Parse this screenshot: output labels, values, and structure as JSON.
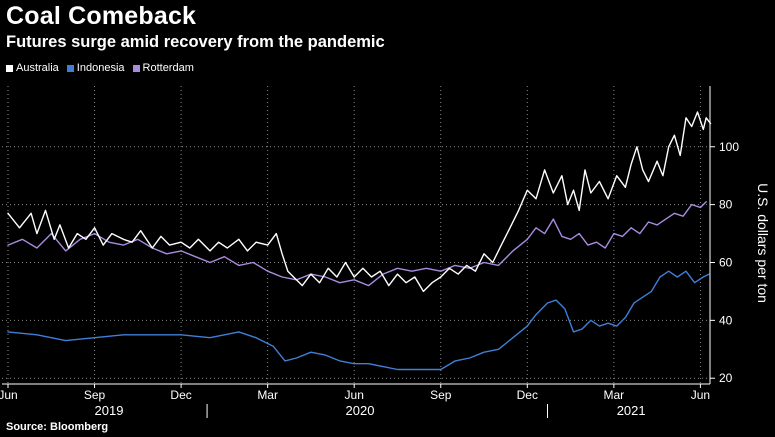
{
  "chart_data": {
    "type": "line",
    "title": "Coal Comeback",
    "subtitle": "Futures surge amid recovery from the pandemic",
    "ylabel": "U.S. dollars per ton",
    "xlabel": "",
    "source": "Source: Bloomberg",
    "ylim": [
      18,
      121
    ],
    "yticks": [
      20,
      40,
      60,
      80,
      100
    ],
    "grid": true,
    "legend_position": "top-left",
    "x_range_months": [
      0,
      24.5
    ],
    "x_ticks": [
      {
        "label": "Jun",
        "month": 0
      },
      {
        "label": "Sep",
        "month": 3
      },
      {
        "label": "Dec",
        "month": 6
      },
      {
        "label": "Mar",
        "month": 9
      },
      {
        "label": "Jun",
        "month": 12
      },
      {
        "label": "Sep",
        "month": 15
      },
      {
        "label": "Dec",
        "month": 18
      },
      {
        "label": "Mar",
        "month": 21
      },
      {
        "label": "Jun",
        "month": 24
      }
    ],
    "years": [
      {
        "label": "2019",
        "month": 3.5
      },
      {
        "label": "2020",
        "month": 12.2
      },
      {
        "label": "2021",
        "month": 21.6
      }
    ],
    "year_separators": [
      6.9,
      18.7
    ],
    "x_unit": "months since Jun 2019",
    "series": [
      {
        "name": "Australia",
        "color": "#ffffff",
        "x": [
          0,
          0.4,
          0.8,
          1.0,
          1.3,
          1.6,
          1.8,
          2.1,
          2.4,
          2.7,
          3.0,
          3.3,
          3.6,
          4.0,
          4.3,
          4.6,
          5.0,
          5.3,
          5.6,
          6.0,
          6.3,
          6.6,
          7.0,
          7.3,
          7.6,
          8.0,
          8.3,
          8.6,
          9.0,
          9.3,
          9.5,
          9.7,
          9.9,
          10.2,
          10.5,
          10.8,
          11.1,
          11.4,
          11.7,
          12.0,
          12.3,
          12.6,
          12.9,
          13.2,
          13.5,
          13.8,
          14.1,
          14.4,
          14.7,
          15.0,
          15.3,
          15.6,
          15.9,
          16.2,
          16.5,
          16.8,
          17.1,
          17.4,
          17.7,
          18.0,
          18.3,
          18.6,
          18.9,
          19.2,
          19.4,
          19.6,
          19.8,
          20.0,
          20.2,
          20.5,
          20.8,
          21.1,
          21.4,
          21.6,
          21.8,
          22.0,
          22.2,
          22.5,
          22.7,
          22.9,
          23.1,
          23.3,
          23.5,
          23.7,
          23.9,
          24.1,
          24.2,
          24.35
        ],
        "values": [
          77,
          72,
          77,
          70,
          78,
          68,
          73,
          65,
          70,
          68,
          72,
          66,
          70,
          68,
          67,
          71,
          65,
          69,
          66,
          67,
          65,
          68,
          64,
          67,
          65,
          68,
          64,
          67,
          66,
          70,
          63,
          57,
          55,
          52,
          56,
          53,
          58,
          55,
          60,
          55,
          58,
          55,
          57,
          52,
          56,
          53,
          55,
          50,
          53,
          55,
          58,
          56,
          59,
          57,
          63,
          60,
          66,
          72,
          78,
          85,
          82,
          92,
          84,
          90,
          80,
          85,
          78,
          92,
          84,
          88,
          82,
          90,
          86,
          94,
          100,
          92,
          88,
          95,
          90,
          100,
          104,
          97,
          110,
          107,
          112,
          106,
          110,
          108
        ]
      },
      {
        "name": "Indonesia",
        "color": "#3f7fd6",
        "x": [
          0,
          1,
          2,
          3,
          4,
          5,
          6,
          7,
          8,
          8.6,
          9.2,
          9.6,
          10.0,
          10.5,
          11.0,
          11.5,
          12.0,
          12.5,
          13.0,
          13.5,
          14.0,
          14.5,
          15.0,
          15.5,
          16.0,
          16.5,
          17.0,
          17.5,
          18.0,
          18.3,
          18.7,
          19.0,
          19.3,
          19.6,
          19.9,
          20.2,
          20.5,
          20.8,
          21.1,
          21.4,
          21.7,
          22.0,
          22.3,
          22.6,
          22.9,
          23.2,
          23.5,
          23.8,
          24.1,
          24.3
        ],
        "values": [
          36,
          35,
          33,
          34,
          35,
          35,
          35,
          34,
          36,
          34,
          31,
          26,
          27,
          29,
          28,
          26,
          25,
          25,
          24,
          23,
          23,
          23,
          23,
          26,
          27,
          29,
          30,
          34,
          38,
          42,
          46,
          47,
          44,
          36,
          37,
          40,
          38,
          39,
          38,
          41,
          46,
          48,
          50,
          55,
          57,
          55,
          57,
          53,
          55,
          56
        ]
      },
      {
        "name": "Rotterdam",
        "color": "#a98be0",
        "x": [
          0,
          0.5,
          1.0,
          1.5,
          2.0,
          2.5,
          3.0,
          3.5,
          4.0,
          4.5,
          5.0,
          5.5,
          6.0,
          6.5,
          7.0,
          7.5,
          8.0,
          8.5,
          9.0,
          9.5,
          10.0,
          10.5,
          11.0,
          11.5,
          12.0,
          12.5,
          13.0,
          13.5,
          14.0,
          14.5,
          15.0,
          15.5,
          16.0,
          16.5,
          17.0,
          17.5,
          18.0,
          18.3,
          18.6,
          18.9,
          19.2,
          19.5,
          19.8,
          20.1,
          20.4,
          20.7,
          21.0,
          21.3,
          21.6,
          21.9,
          22.2,
          22.5,
          22.8,
          23.1,
          23.4,
          23.7,
          24.0,
          24.2
        ],
        "values": [
          66,
          68,
          65,
          70,
          64,
          68,
          70,
          67,
          66,
          68,
          65,
          63,
          64,
          62,
          60,
          62,
          59,
          60,
          57,
          55,
          54,
          56,
          55,
          53,
          54,
          52,
          56,
          58,
          57,
          58,
          57,
          59,
          58,
          60,
          59,
          64,
          68,
          72,
          70,
          75,
          69,
          68,
          70,
          66,
          67,
          65,
          70,
          69,
          72,
          70,
          74,
          73,
          75,
          77,
          76,
          80,
          79,
          81
        ]
      }
    ]
  }
}
